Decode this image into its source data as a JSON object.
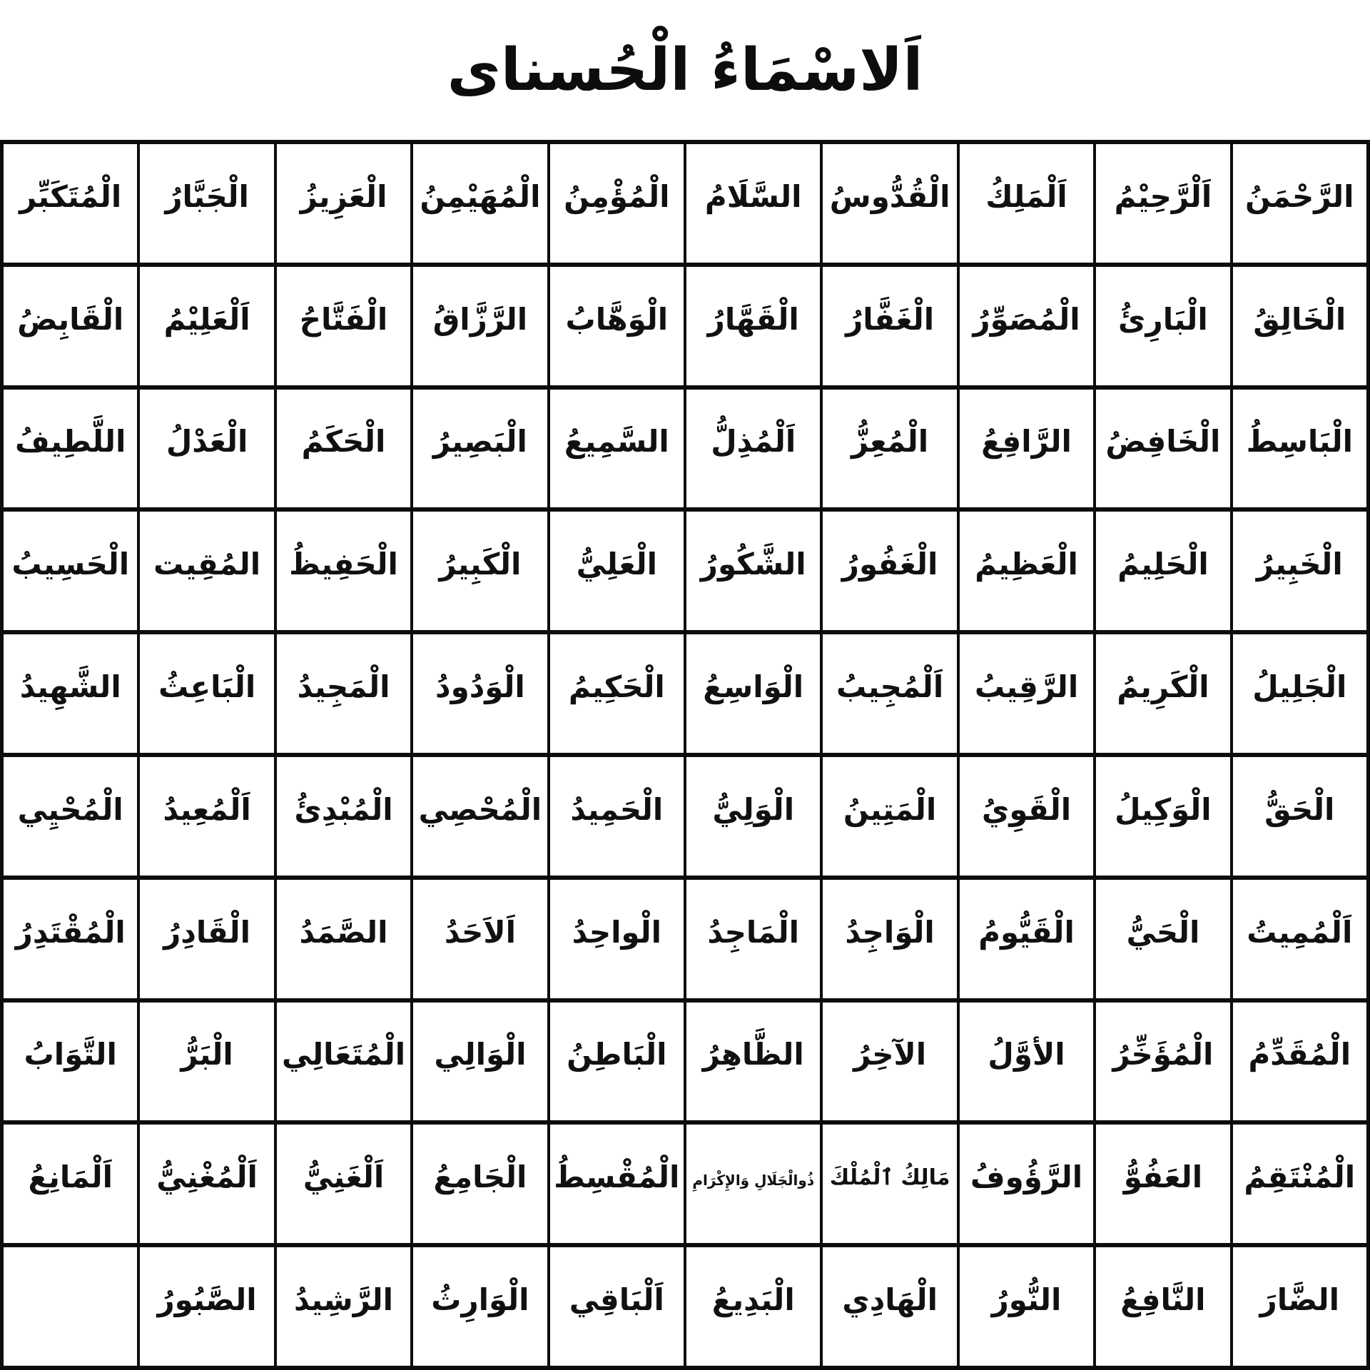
{
  "title": "اَلاسْمَاءُ الْحُسناى",
  "colors": {
    "background": "#ffffff",
    "text": "#111111",
    "border": "#0d0d0d"
  },
  "grid": {
    "rows": [
      [
        "الرَّحْمَنُ",
        "اَلْرَّحِيْمُ",
        "اَلْمَلِكُ",
        "الْقُدُّوسُ",
        "السَّلَامُ",
        "الْمُؤْمِنُ",
        "الْمُهَيْمِنُ",
        "الْعَزِيزُ",
        "الْجَبَّارُ",
        "الْمُتَكَبِّر"
      ],
      [
        "الْخَالِقُ",
        "الْبَارِئُ",
        "الْمُصَوِّرُ",
        "الْغَفَّارُ",
        "الْقَهَّارُ",
        "الْوَهَّابُ",
        "الرَّزَّاقُ",
        "الْفَتَّاحُ",
        "اَلْعَلِيْمُ",
        "الْقَابِضُ"
      ],
      [
        "الْبَاسِطُ",
        "الْخَافِضُ",
        "الرَّافِعُ",
        "الْمُعِزُّ",
        "اَلْمُذِلُّ",
        "السَّمِيعُ",
        "الْبَصِيرُ",
        "الْحَكَمُ",
        "الْعَدْلُ",
        "اللَّطِيفُ"
      ],
      [
        "الْخَبِيرُ",
        "الْحَلِيمُ",
        "الْعَظِيمُ",
        "الْغَفُورُ",
        "الشَّكُورُ",
        "الْعَلِيُّ",
        "الْكَبِيرُ",
        "الْحَفِيظُ",
        "المُقِيت",
        "الْحَسِيبُ"
      ],
      [
        "الْجَلِيلُ",
        "الْكَرِيمُ",
        "الرَّقِيبُ",
        "اَلْمُجِيبُ",
        "الْوَاسِعُ",
        "الْحَكِيمُ",
        "الْوَدُودُ",
        "الْمَجِيدُ",
        "الْبَاعِثُ",
        "الشَّهِيدُ"
      ],
      [
        "الْحَقُّ",
        "الْوَكِيلُ",
        "الْقَوِيُ",
        "الْمَتِينُ",
        "الْوَلِيُّ",
        "الْحَمِيدُ",
        "الْمُحْصِي",
        "الْمُبْدِئُ",
        "اَلْمُعِيدُ",
        "الْمُحْيِي"
      ],
      [
        "اَلْمُمِيتُ",
        "الْحَيُّ",
        "الْقَيُّومُ",
        "الْوَاجِدُ",
        "الْمَاجِدُ",
        "الْواحِدُ",
        "اَلاَحَدُ",
        "الصَّمَدُ",
        "الْقَادِرُ",
        "الْمُقْتَدِرُ"
      ],
      [
        "الْمُقَدِّمُ",
        "الْمُؤَخِّرُ",
        "الأوَّلُ",
        "الآخِرُ",
        "الظَّاهِرُ",
        "الْبَاطِنُ",
        "الْوَالِي",
        "الْمُتَعَالِي",
        "الْبَرُّ",
        "التَّوَابُ"
      ],
      [
        "الْمُنْتَقِمُ",
        "العَفُوُّ",
        "الرَّؤُوفُ",
        "مَالِكُ ٱلْمُلْكَ",
        "ذُوالْجَلَالِ وَالإِكْرَامِ",
        "الْمُقْسِطُ",
        "الْجَامِعُ",
        "اَلْغَنِيُّ",
        "اَلْمُغْنِيُّ",
        "اَلْمَانِعُ"
      ],
      [
        "الضَّارَ",
        "النَّافِعُ",
        "النُّورُ",
        "الْهَادِي",
        "الْبَدِيعُ",
        "اَلْبَاقِي",
        "الْوَارِثُ",
        "الرَّشِيدُ",
        "الصَّبُورُ",
        ""
      ]
    ]
  }
}
